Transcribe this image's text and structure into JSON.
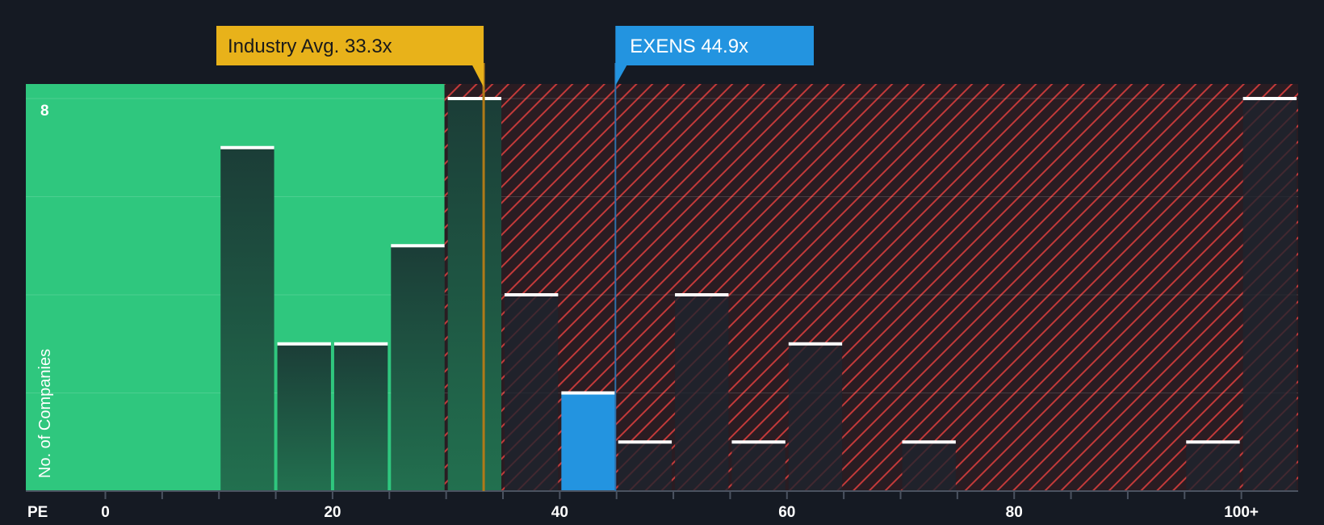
{
  "chart_data": {
    "type": "bar",
    "xlabel": "PE",
    "ylabel": "No. of Companies",
    "x_ticks": [
      "0",
      "20",
      "40",
      "60",
      "80",
      "100+"
    ],
    "y_ticks": [
      "8"
    ],
    "xlim": [
      -7,
      100
    ],
    "ylim": [
      0,
      8
    ],
    "bin_width": 5,
    "bins": [
      {
        "start": 10,
        "end": 15,
        "count": 7
      },
      {
        "start": 15,
        "end": 20,
        "count": 3
      },
      {
        "start": 20,
        "end": 25,
        "count": 3
      },
      {
        "start": 25,
        "end": 30,
        "count": 5
      },
      {
        "start": 30,
        "end": 35,
        "count": 8
      },
      {
        "start": 35,
        "end": 40,
        "count": 4
      },
      {
        "start": 40,
        "end": 45,
        "count": 2,
        "highlight": true
      },
      {
        "start": 45,
        "end": 50,
        "count": 1
      },
      {
        "start": 50,
        "end": 55,
        "count": 4
      },
      {
        "start": 55,
        "end": 60,
        "count": 1
      },
      {
        "start": 60,
        "end": 65,
        "count": 3
      },
      {
        "start": 70,
        "end": 75,
        "count": 1
      },
      {
        "start": 95,
        "end": 100,
        "count": 1
      },
      {
        "start": 100,
        "end": 105,
        "count": 8
      }
    ],
    "industry_avg": {
      "label": "Industry Avg. 33.3x",
      "value": 33.3,
      "color": "#e8b21a"
    },
    "company": {
      "label": "EXENS 44.9x",
      "value": 44.9,
      "color": "#2394e0"
    },
    "colors": {
      "background": "#151a23",
      "fair_zone": "#2fc77e",
      "overvalued_hatch": "#c33a3a",
      "bar": "#1d4a3f",
      "bar_highlight": "#2394e0",
      "bar_cap": "#ffffff"
    }
  }
}
